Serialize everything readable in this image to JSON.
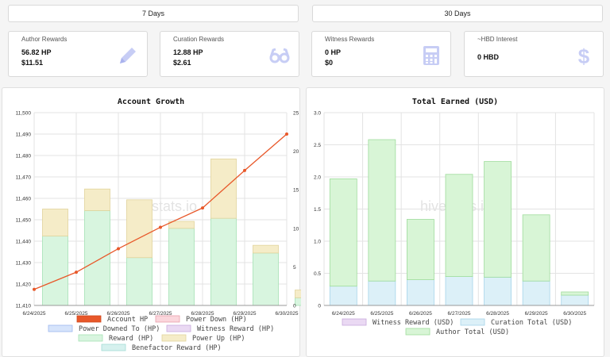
{
  "range_buttons": {
    "seven_days": "7 Days",
    "thirty_days": "30 Days"
  },
  "cards": {
    "author": {
      "title": "Author Rewards",
      "hp": "56.82 HP",
      "usd": "$11.51",
      "icon": "pencil-icon"
    },
    "curation": {
      "title": "Curation Rewards",
      "hp": "12.88 HP",
      "usd": "$2.61",
      "icon": "glasses-icon"
    },
    "witness": {
      "title": "Witness Rewards",
      "hp": "0 HP",
      "usd": "$0",
      "icon": "calculator-icon"
    },
    "interest": {
      "title": "~HBD Interest",
      "value": "0 HBD",
      "icon": "dollar-icon"
    }
  },
  "colors": {
    "card_icon": "#c7cdf5",
    "account_hp": "#e8582a",
    "power_up": "#f5ecc8",
    "reward_hp": "#d8f5df",
    "author_total": "#d8f5d6",
    "curation_total": "#dcf0f8"
  },
  "watermark": "hivestats.io",
  "chart_data": [
    {
      "type": "bar",
      "title": "Account Growth",
      "categories": [
        "6/24/2025",
        "6/25/2025",
        "6/26/2025",
        "6/27/2025",
        "6/28/2025",
        "6/29/2025",
        "6/30/2025"
      ],
      "series": [
        {
          "name": "Account HP",
          "type": "line",
          "axis": "left",
          "values": [
            11417.5,
            11425.5,
            11436.5,
            11446.5,
            11455.5,
            11473,
            11490
          ]
        },
        {
          "name": "Power Down (HP)",
          "type": "bar",
          "axis": "right",
          "values": [
            0,
            0,
            0,
            0,
            0,
            0,
            0
          ]
        },
        {
          "name": "Power Downed To (HP)",
          "type": "bar",
          "axis": "right",
          "values": [
            0,
            0,
            0,
            0,
            0,
            0,
            0
          ]
        },
        {
          "name": "Witness Reward (HP)",
          "type": "bar",
          "axis": "right",
          "values": [
            0,
            0,
            0,
            0,
            0,
            0,
            0
          ]
        },
        {
          "name": "Reward (HP)",
          "type": "bar",
          "axis": "right",
          "values": [
            9,
            12.3,
            6.2,
            10,
            11.3,
            6.8,
            1
          ]
        },
        {
          "name": "Power Up (HP)",
          "type": "bar",
          "axis": "right",
          "values": [
            3.5,
            2.8,
            7.5,
            0.9,
            7.7,
            1.0,
            1.0
          ]
        },
        {
          "name": "Benefactor Reward (HP)",
          "type": "bar",
          "axis": "right",
          "values": [
            0,
            0,
            0,
            0,
            0,
            0,
            0
          ]
        }
      ],
      "left_axis": {
        "min": 11410,
        "max": 11500,
        "ticks": [
          "11,410",
          "11,420",
          "11,430",
          "11,440",
          "11,450",
          "11,460",
          "11,470",
          "11,480",
          "11,490",
          "11,500"
        ]
      },
      "right_axis": {
        "min": 0,
        "max": 25,
        "ticks": [
          "0",
          "5",
          "10",
          "15",
          "20",
          "25"
        ]
      },
      "legend_position": "bottom",
      "grid": true
    },
    {
      "type": "bar",
      "title": "Total Earned (USD)",
      "categories": [
        "6/24/2025",
        "6/25/2025",
        "6/26/2025",
        "6/27/2025",
        "6/28/2025",
        "6/29/2025",
        "6/30/2025"
      ],
      "series": [
        {
          "name": "Witness Reward (USD)",
          "values": [
            0,
            0,
            0,
            0,
            0,
            0,
            0
          ]
        },
        {
          "name": "Curation Total (USD)",
          "values": [
            0.3,
            0.38,
            0.4,
            0.45,
            0.44,
            0.38,
            0.16
          ]
        },
        {
          "name": "Author Total (USD)",
          "values": [
            1.67,
            2.2,
            0.94,
            1.59,
            1.8,
            1.03,
            0.05
          ]
        }
      ],
      "y_axis": {
        "min": 0,
        "max": 3.0,
        "ticks": [
          "0",
          "0.5",
          "1.0",
          "1.5",
          "2.0",
          "2.5",
          "3.0"
        ]
      },
      "legend_position": "bottom",
      "grid": true
    }
  ]
}
